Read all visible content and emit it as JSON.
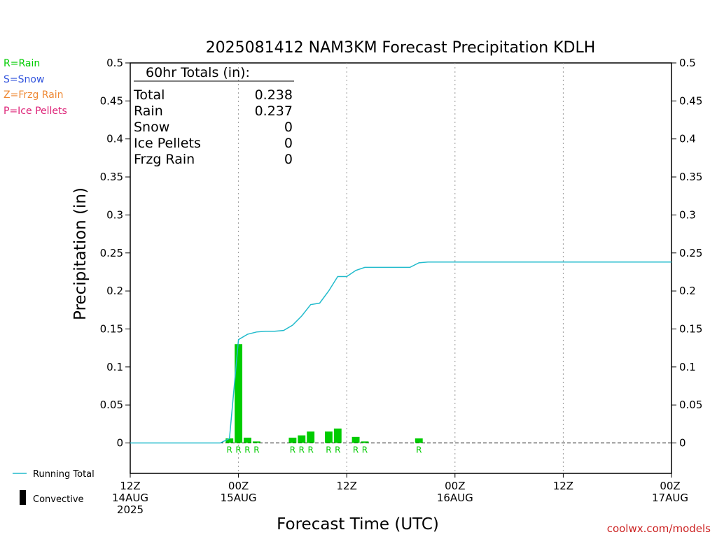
{
  "colors": {
    "rain": "#00cc00",
    "snow": "#3355dd",
    "frzg_rain": "#ee8833",
    "ice_pellets": "#dd2277",
    "running_total": "#22bbcc",
    "credit": "#cc2222"
  },
  "ptype_legend": [
    {
      "text": "R=Rain",
      "color_key": "rain"
    },
    {
      "text": "S=Snow",
      "color_key": "snow"
    },
    {
      "text": "Z=Frzg Rain",
      "color_key": "frzg_rain"
    },
    {
      "text": "P=Ice Pellets",
      "color_key": "ice_pellets"
    }
  ],
  "totals": {
    "header": "60hr Totals (in):",
    "rows": [
      {
        "label": "Total",
        "value": "0.238"
      },
      {
        "label": "Rain",
        "value": "0.237"
      },
      {
        "label": "Snow",
        "value": "0"
      },
      {
        "label": "Ice Pellets",
        "value": "0"
      },
      {
        "label": "Frzg Rain",
        "value": "0"
      }
    ]
  },
  "bottom_legend": {
    "running_total": "Running Total",
    "convective": "Convective"
  },
  "credit": "coolwx.com/models",
  "chart_data": {
    "type": "bar",
    "title": "2025081412 NAM3KM Forecast Precipitation KDLH",
    "ylabel": "Precipitation (in)",
    "xlabel": "Forecast Time (UTC)",
    "ylim": [
      -0.04,
      0.5
    ],
    "xlim": [
      0,
      60
    ],
    "yticks": [
      0,
      0.05,
      0.1,
      0.15,
      0.2,
      0.25,
      0.3,
      0.35,
      0.4,
      0.45,
      0.5
    ],
    "ytick_labels": [
      "0",
      "0.05",
      "0.1",
      "0.15",
      "0.2",
      "0.25",
      "0.3",
      "0.35",
      "0.4",
      "0.45",
      "0.5"
    ],
    "xticks": [
      {
        "hour": 0,
        "lines": [
          "12Z",
          "14AUG",
          "2025"
        ]
      },
      {
        "hour": 12,
        "lines": [
          "00Z",
          "15AUG"
        ]
      },
      {
        "hour": 24,
        "lines": [
          "12Z"
        ]
      },
      {
        "hour": 36,
        "lines": [
          "00Z",
          "16AUG"
        ]
      },
      {
        "hour": 48,
        "lines": [
          "12Z"
        ]
      },
      {
        "hour": 60,
        "lines": [
          "00Z",
          "17AUG"
        ]
      }
    ],
    "grid_x_hours": [
      12,
      24,
      36,
      48
    ],
    "bars": [
      {
        "hour": 11,
        "value": 0.006,
        "ptype": "R"
      },
      {
        "hour": 12,
        "value": 0.13,
        "ptype": "R"
      },
      {
        "hour": 13,
        "value": 0.007,
        "ptype": "R"
      },
      {
        "hour": 14,
        "value": 0.002,
        "ptype": "R"
      },
      {
        "hour": 18,
        "value": 0.007,
        "ptype": "R"
      },
      {
        "hour": 19,
        "value": 0.01,
        "ptype": "R"
      },
      {
        "hour": 20,
        "value": 0.015,
        "ptype": "R"
      },
      {
        "hour": 22,
        "value": 0.015,
        "ptype": "R"
      },
      {
        "hour": 23,
        "value": 0.019,
        "ptype": "R"
      },
      {
        "hour": 25,
        "value": 0.008,
        "ptype": "R"
      },
      {
        "hour": 26,
        "value": 0.002,
        "ptype": "R"
      },
      {
        "hour": 32,
        "value": 0.006,
        "ptype": "R"
      }
    ],
    "running_total": [
      [
        0,
        0
      ],
      [
        1,
        0
      ],
      [
        2,
        0
      ],
      [
        3,
        0
      ],
      [
        4,
        0
      ],
      [
        5,
        0
      ],
      [
        6,
        0
      ],
      [
        7,
        0
      ],
      [
        8,
        0
      ],
      [
        9,
        0
      ],
      [
        10,
        0
      ],
      [
        11,
        0.006
      ],
      [
        12,
        0.136
      ],
      [
        13,
        0.143
      ],
      [
        14,
        0.146
      ],
      [
        15,
        0.147
      ],
      [
        16,
        0.147
      ],
      [
        17,
        0.148
      ],
      [
        18,
        0.155
      ],
      [
        19,
        0.167
      ],
      [
        20,
        0.182
      ],
      [
        21,
        0.184
      ],
      [
        22,
        0.2
      ],
      [
        23,
        0.219
      ],
      [
        24,
        0.219
      ],
      [
        25,
        0.227
      ],
      [
        26,
        0.231
      ],
      [
        27,
        0.231
      ],
      [
        28,
        0.231
      ],
      [
        29,
        0.231
      ],
      [
        30,
        0.231
      ],
      [
        31,
        0.231
      ],
      [
        32,
        0.237
      ],
      [
        33,
        0.238
      ],
      [
        34,
        0.238
      ],
      [
        35,
        0.238
      ],
      [
        36,
        0.238
      ],
      [
        37,
        0.238
      ],
      [
        38,
        0.238
      ],
      [
        39,
        0.238
      ],
      [
        40,
        0.238
      ],
      [
        41,
        0.238
      ],
      [
        42,
        0.238
      ],
      [
        43,
        0.238
      ],
      [
        44,
        0.238
      ],
      [
        45,
        0.238
      ],
      [
        46,
        0.238
      ],
      [
        47,
        0.238
      ],
      [
        48,
        0.238
      ],
      [
        49,
        0.238
      ],
      [
        50,
        0.238
      ],
      [
        51,
        0.238
      ],
      [
        52,
        0.238
      ],
      [
        53,
        0.238
      ],
      [
        54,
        0.238
      ],
      [
        55,
        0.238
      ],
      [
        56,
        0.238
      ],
      [
        57,
        0.238
      ],
      [
        58,
        0.238
      ],
      [
        59,
        0.238
      ],
      [
        60,
        0.238
      ]
    ]
  }
}
